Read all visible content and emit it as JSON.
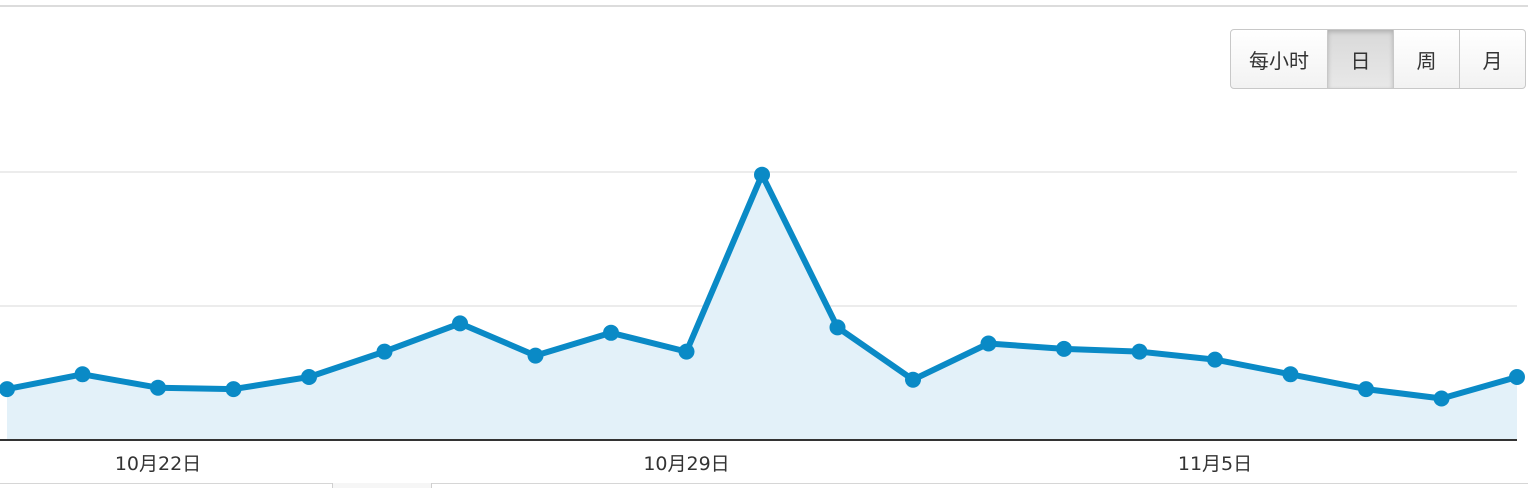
{
  "granularity": {
    "buttons": [
      {
        "label": "每小时",
        "active": false
      },
      {
        "label": "日",
        "active": true
      },
      {
        "label": "周",
        "active": false
      },
      {
        "label": "月",
        "active": false
      }
    ]
  },
  "chart_data": {
    "type": "area",
    "x_tick_labels": [
      "10月22日",
      "10月29日",
      "11月5日"
    ],
    "x_tick_indices": [
      2,
      9,
      16
    ],
    "values": [
      0.38,
      0.49,
      0.39,
      0.38,
      0.47,
      0.66,
      0.87,
      0.63,
      0.8,
      0.66,
      1.98,
      0.84,
      0.45,
      0.72,
      0.68,
      0.66,
      0.6,
      0.49,
      0.38,
      0.31,
      0.47
    ],
    "ylim": [
      0,
      2
    ],
    "grid": true,
    "legend": "none",
    "colors": {
      "line": "#0a8ac6",
      "fill": "#e3f1f9",
      "grid": "#e6e6e6",
      "axis": "#333333"
    }
  }
}
